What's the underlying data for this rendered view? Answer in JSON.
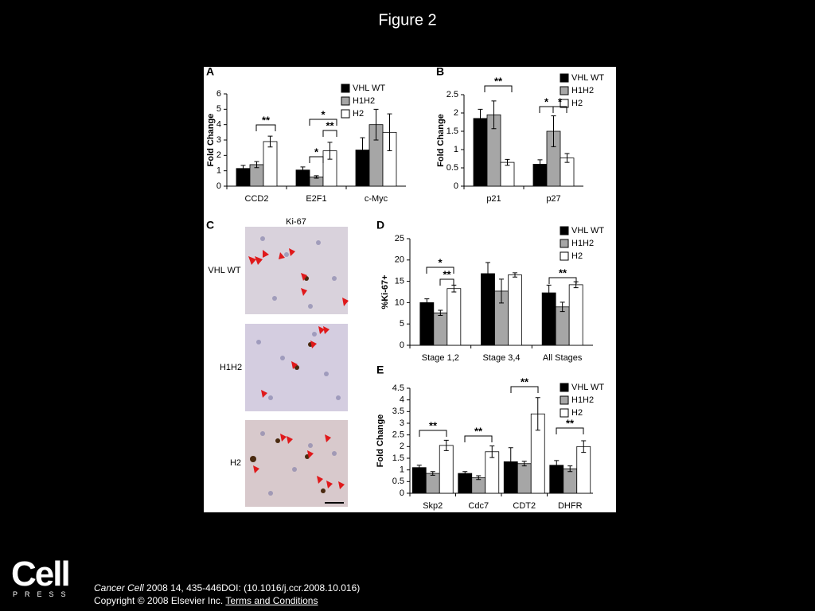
{
  "title": "Figure 2",
  "panels": {
    "a": "A",
    "b": "B",
    "c": "C",
    "d": "D",
    "e": "E"
  },
  "panel_c": {
    "title": "Ki-67",
    "rows": [
      "VHL WT",
      "H1H2",
      "H2"
    ]
  },
  "chart_data": [
    {
      "type": "bar",
      "ylabel": "Fold Change",
      "categories": [
        "CCD2",
        "E2F1",
        "c-Myc"
      ],
      "ylim": [
        0,
        6
      ],
      "yticks": [
        0,
        1,
        2,
        3,
        4,
        5,
        6
      ],
      "series": [
        {
          "name": "VHL WT",
          "color": "#000000",
          "values": [
            1.15,
            1.05,
            2.35
          ],
          "errors": [
            0.2,
            0.2,
            0.8
          ]
        },
        {
          "name": "H1H2",
          "color": "#a6a6a6",
          "values": [
            1.4,
            0.6,
            4.0
          ],
          "errors": [
            0.2,
            0.08,
            1.0
          ]
        },
        {
          "name": "H2",
          "color": "#ffffff",
          "values": [
            2.9,
            2.3,
            3.5
          ],
          "errors": [
            0.35,
            0.55,
            1.2
          ]
        }
      ],
      "annotations": [
        "**",
        "*",
        "*",
        "**"
      ]
    },
    {
      "type": "bar",
      "ylabel": "Fold Change",
      "categories": [
        "p21",
        "p27"
      ],
      "ylim": [
        0,
        2.5
      ],
      "yticks": [
        0,
        0.5,
        1,
        1.5,
        2,
        2.5
      ],
      "series": [
        {
          "name": "VHL WT",
          "color": "#000000",
          "values": [
            1.85,
            0.6
          ],
          "errors": [
            0.25,
            0.12
          ]
        },
        {
          "name": "H1H2",
          "color": "#a6a6a6",
          "values": [
            1.95,
            1.5
          ],
          "errors": [
            0.38,
            0.42
          ]
        },
        {
          "name": "H2",
          "color": "#ffffff",
          "values": [
            0.65,
            0.77
          ],
          "errors": [
            0.08,
            0.12
          ]
        }
      ],
      "annotations": [
        "**",
        "*",
        "*"
      ]
    },
    {
      "type": "bar",
      "ylabel": "%Ki-67+",
      "categories": [
        "Stage 1,2",
        "Stage 3,4",
        "All Stages"
      ],
      "ylim": [
        0,
        25
      ],
      "yticks": [
        0,
        5,
        10,
        15,
        20,
        25
      ],
      "series": [
        {
          "name": "VHL WT",
          "color": "#000000",
          "values": [
            10,
            16.8,
            12.3
          ],
          "errors": [
            0.9,
            2.6,
            1.8
          ]
        },
        {
          "name": "H1H2",
          "color": "#a6a6a6",
          "values": [
            7.6,
            12.7,
            9.0
          ],
          "errors": [
            0.6,
            2.8,
            1.1
          ]
        },
        {
          "name": "H2",
          "color": "#ffffff",
          "values": [
            13.3,
            16.5,
            14.2
          ],
          "errors": [
            0.8,
            0.5,
            0.7
          ]
        }
      ],
      "annotations": [
        "*",
        "**",
        "**"
      ]
    },
    {
      "type": "bar",
      "ylabel": "Fold Change",
      "categories": [
        "Skp2",
        "Cdc7",
        "CDT2",
        "DHFR"
      ],
      "ylim": [
        0,
        4.5
      ],
      "yticks": [
        0,
        0.5,
        1,
        1.5,
        2,
        2.5,
        3,
        3.5,
        4,
        4.5
      ],
      "series": [
        {
          "name": "VHL WT",
          "color": "#000000",
          "values": [
            1.1,
            0.85,
            1.35,
            1.2
          ],
          "errors": [
            0.1,
            0.08,
            0.6,
            0.2
          ]
        },
        {
          "name": "H1H2",
          "color": "#a6a6a6",
          "values": [
            0.85,
            0.67,
            1.27,
            1.05
          ],
          "errors": [
            0.08,
            0.08,
            0.1,
            0.12
          ]
        },
        {
          "name": "H2",
          "color": "#ffffff",
          "values": [
            2.05,
            1.78,
            3.4,
            2.0
          ],
          "errors": [
            0.22,
            0.25,
            0.7,
            0.25
          ]
        }
      ],
      "annotations": [
        "**",
        "**",
        "**",
        "**"
      ]
    }
  ],
  "footer": {
    "logo": "Cell",
    "logo_sub": "PRESS",
    "journal": "Cancer Cell",
    "citation": "2008 14, 435-446DOI: (10.1016/j.ccr.2008.10.016)",
    "copyright": "Copyright © 2008 Elsevier Inc.",
    "link": "Terms and Conditions"
  }
}
